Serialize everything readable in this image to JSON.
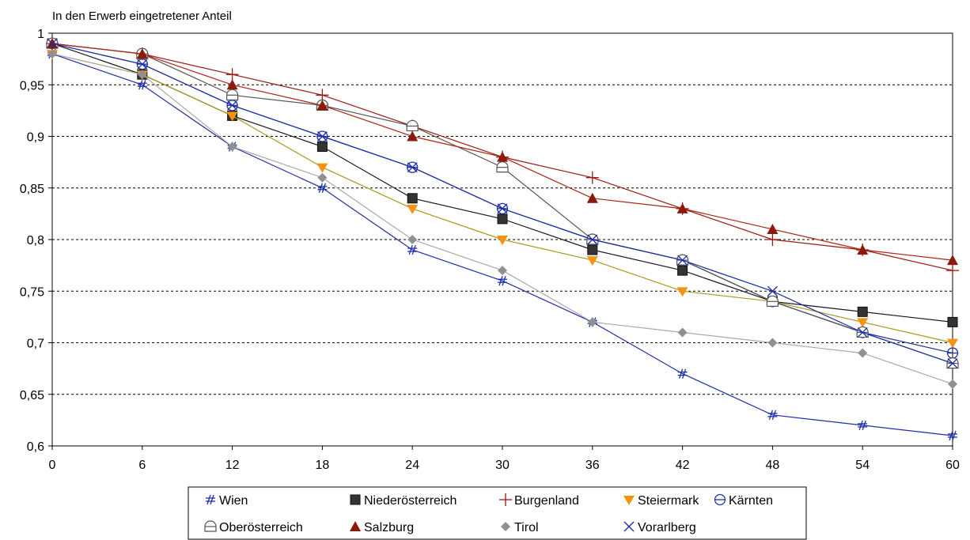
{
  "chart_data": {
    "type": "line",
    "title": "",
    "ylabel": "In den Erwerb eingetretener Anteil",
    "xlabel": "",
    "x": [
      0,
      6,
      12,
      18,
      24,
      30,
      36,
      42,
      48,
      54,
      60
    ],
    "x_ticks": [
      "0",
      "6",
      "12",
      "18",
      "24",
      "30",
      "36",
      "42",
      "48",
      "54",
      "60"
    ],
    "ylim": [
      0.6,
      1
    ],
    "y_ticks": [
      "0,6",
      "0,65",
      "0,7",
      "0,75",
      "0,8",
      "0,85",
      "0,9",
      "0,95",
      "1"
    ],
    "y_tick_values": [
      0.6,
      0.65,
      0.7,
      0.75,
      0.8,
      0.85,
      0.9,
      0.95,
      1.0
    ],
    "grid": "horizontal-dashed",
    "legend_position": "bottom",
    "series": [
      {
        "name": "Wien",
        "color": "#1f2fa6",
        "marker": "hash",
        "values": [
          0.98,
          0.95,
          0.89,
          0.85,
          0.79,
          0.76,
          0.72,
          0.67,
          0.63,
          0.62,
          0.61
        ]
      },
      {
        "name": "Niederösterreich",
        "color": "#1a1a1a",
        "marker": "square",
        "values": [
          0.99,
          0.96,
          0.92,
          0.89,
          0.84,
          0.82,
          0.79,
          0.77,
          0.74,
          0.73,
          0.72
        ]
      },
      {
        "name": "Burgenland",
        "color": "#9a1a10",
        "marker": "plus",
        "values": [
          0.99,
          0.98,
          0.96,
          0.94,
          0.91,
          0.88,
          0.86,
          0.83,
          0.8,
          0.79,
          0.77
        ]
      },
      {
        "name": "Steiermark",
        "color": "#a89a1c",
        "marker": "triangle-down",
        "marker_color": "#f5920f",
        "values": [
          0.98,
          0.96,
          0.92,
          0.87,
          0.83,
          0.8,
          0.78,
          0.75,
          0.74,
          0.72,
          0.7
        ]
      },
      {
        "name": "Kärnten",
        "color": "#2030a0",
        "marker": "circle-bar",
        "values": [
          0.99,
          0.97,
          0.93,
          0.9,
          0.87,
          0.83,
          0.8,
          0.78,
          0.74,
          0.71,
          0.69
        ]
      },
      {
        "name": "Oberösterreich",
        "color": "#555555",
        "marker": "half-circle",
        "values": [
          0.99,
          0.98,
          0.94,
          0.93,
          0.91,
          0.87,
          0.8,
          0.78,
          0.74,
          0.71,
          0.68
        ]
      },
      {
        "name": "Salzburg",
        "color": "#b02010",
        "marker": "triangle-up",
        "marker_color": "#8b1a0a",
        "values": [
          0.99,
          0.98,
          0.95,
          0.93,
          0.9,
          0.88,
          0.84,
          0.83,
          0.81,
          0.79,
          0.78
        ]
      },
      {
        "name": "Tirol",
        "color": "#a9a9a9",
        "marker": "diamond",
        "marker_color": "#909090",
        "values": [
          0.98,
          0.96,
          0.89,
          0.86,
          0.8,
          0.77,
          0.72,
          0.71,
          0.7,
          0.69,
          0.66
        ]
      },
      {
        "name": "Vorarlberg",
        "color": "#1a2ca8",
        "marker": "x",
        "values": [
          0.99,
          0.97,
          0.93,
          0.9,
          0.87,
          0.83,
          0.8,
          0.78,
          0.75,
          0.71,
          0.68
        ]
      }
    ],
    "legend_rows": [
      [
        "Wien",
        "Niederösterreich",
        "Burgenland",
        "Steiermark",
        "Kärnten"
      ],
      [
        "Oberösterreich",
        "Salzburg",
        "Tirol",
        "Vorarlberg"
      ]
    ]
  }
}
